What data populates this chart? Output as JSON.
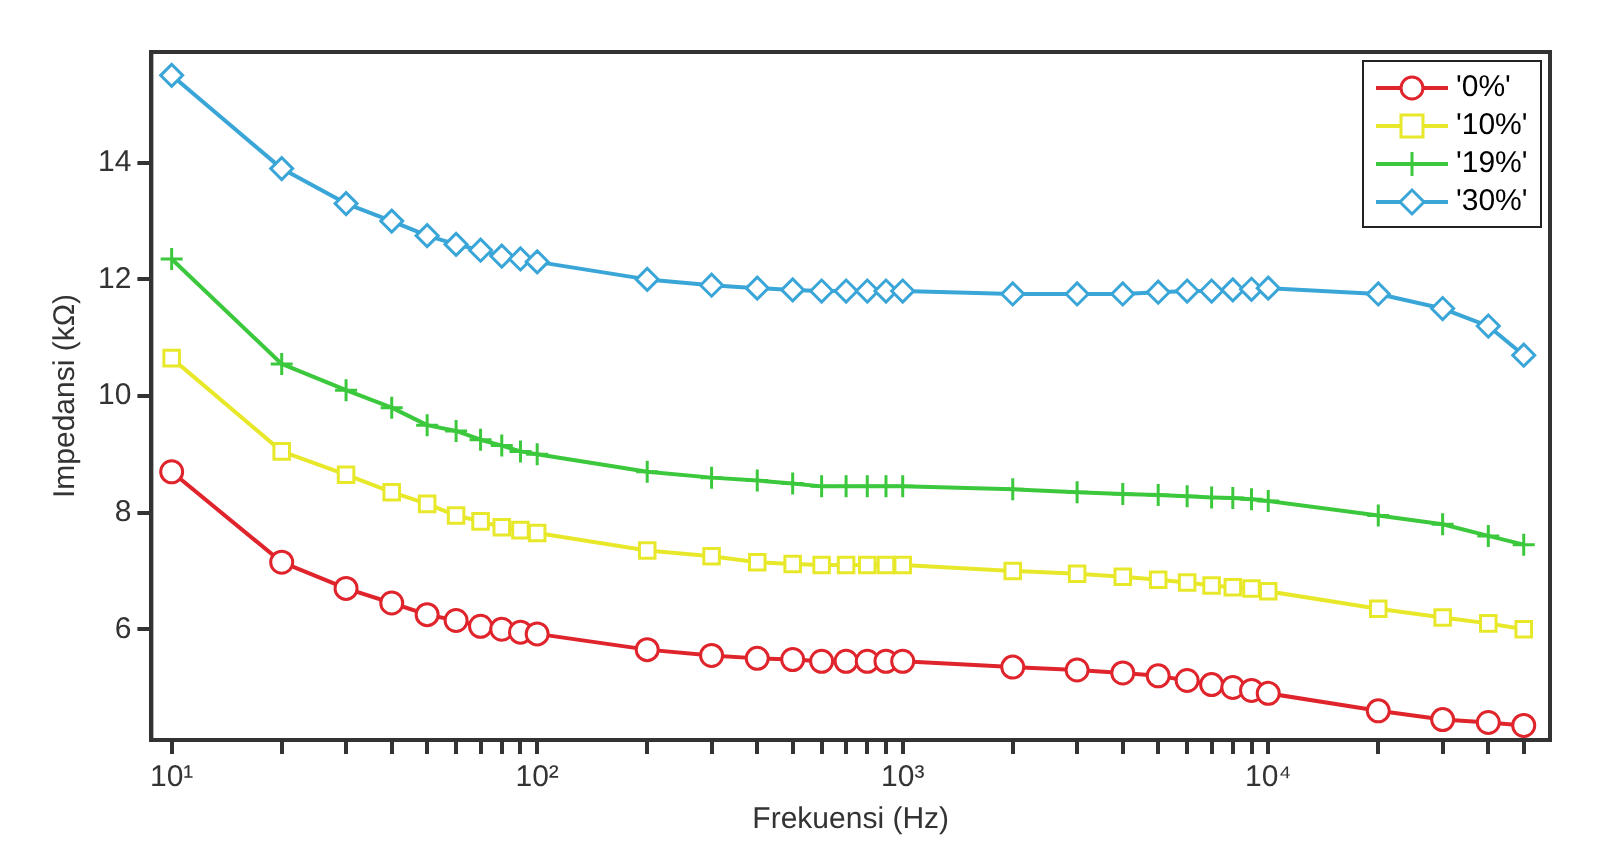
{
  "chart_data": {
    "type": "line",
    "xlabel": "Frekuensi (Hz)",
    "ylabel": "Impedansi (kΩ)",
    "log": "x",
    "grid": false,
    "legend": "top right",
    "x": [
      10,
      20,
      30,
      40,
      50,
      60,
      70,
      80,
      90,
      100,
      200,
      300,
      400,
      500,
      600,
      700,
      800,
      900,
      1000,
      2000,
      3000,
      4000,
      5000,
      6000,
      7000,
      8000,
      9000,
      10000,
      20000,
      30000,
      40000,
      50000
    ],
    "xlim": [
      8.8,
      59000
    ],
    "ylim": [
      4.1,
      15.9
    ],
    "xticks": [
      {
        "value": 10,
        "label": "10¹"
      },
      {
        "value": 20,
        "label": null
      },
      {
        "value": 30,
        "label": null
      },
      {
        "value": 40,
        "label": null
      },
      {
        "value": 50,
        "label": null
      },
      {
        "value": 60,
        "label": null
      },
      {
        "value": 70,
        "label": null
      },
      {
        "value": 80,
        "label": null
      },
      {
        "value": 90,
        "label": null
      },
      {
        "value": 100,
        "label": "10²"
      },
      {
        "value": 200,
        "label": null
      },
      {
        "value": 300,
        "label": null
      },
      {
        "value": 400,
        "label": null
      },
      {
        "value": 500,
        "label": null
      },
      {
        "value": 600,
        "label": null
      },
      {
        "value": 700,
        "label": null
      },
      {
        "value": 800,
        "label": null
      },
      {
        "value": 900,
        "label": null
      },
      {
        "value": 1000,
        "label": "10³"
      },
      {
        "value": 2000,
        "label": null
      },
      {
        "value": 3000,
        "label": null
      },
      {
        "value": 4000,
        "label": null
      },
      {
        "value": 5000,
        "label": null
      },
      {
        "value": 6000,
        "label": null
      },
      {
        "value": 7000,
        "label": null
      },
      {
        "value": 8000,
        "label": null
      },
      {
        "value": 9000,
        "label": null
      },
      {
        "value": 10000,
        "label": "10⁴"
      },
      {
        "value": 20000,
        "label": null
      },
      {
        "value": 30000,
        "label": null
      },
      {
        "value": 40000,
        "label": null
      },
      {
        "value": 50000,
        "label": null
      }
    ],
    "yticks": [
      6,
      8,
      10,
      12,
      14
    ],
    "series": [
      {
        "name": "'0%'",
        "color": "#e0242c",
        "marker": "circle",
        "values": [
          8.7,
          7.15,
          6.7,
          6.45,
          6.25,
          6.15,
          6.05,
          6.0,
          5.95,
          5.92,
          5.65,
          5.55,
          5.5,
          5.48,
          5.45,
          5.45,
          5.45,
          5.45,
          5.45,
          5.35,
          5.3,
          5.25,
          5.2,
          5.12,
          5.05,
          5.0,
          4.95,
          4.9,
          4.6,
          4.45,
          4.4,
          4.35
        ]
      },
      {
        "name": "'10%'",
        "color": "#e8e82a",
        "marker": "square",
        "values": [
          10.65,
          9.05,
          8.65,
          8.35,
          8.15,
          7.95,
          7.85,
          7.75,
          7.7,
          7.65,
          7.35,
          7.25,
          7.15,
          7.12,
          7.1,
          7.1,
          7.1,
          7.1,
          7.1,
          7.0,
          6.95,
          6.9,
          6.85,
          6.8,
          6.75,
          6.72,
          6.7,
          6.65,
          6.35,
          6.2,
          6.1,
          6.0
        ]
      },
      {
        "name": "'19%'",
        "color": "#3cc83c",
        "marker": "cross",
        "values": [
          12.35,
          10.55,
          10.1,
          9.8,
          9.5,
          9.4,
          9.25,
          9.15,
          9.05,
          9.0,
          8.7,
          8.6,
          8.55,
          8.5,
          8.45,
          8.45,
          8.45,
          8.45,
          8.45,
          8.4,
          8.35,
          8.32,
          8.3,
          8.28,
          8.26,
          8.25,
          8.23,
          8.2,
          7.95,
          7.8,
          7.6,
          7.45
        ]
      },
      {
        "name": "'30%'",
        "color": "#3aa6d8",
        "marker": "diamond",
        "values": [
          15.5,
          13.9,
          13.3,
          13.0,
          12.75,
          12.6,
          12.5,
          12.4,
          12.35,
          12.3,
          12.0,
          11.9,
          11.85,
          11.82,
          11.8,
          11.8,
          11.8,
          11.8,
          11.8,
          11.75,
          11.75,
          11.75,
          11.78,
          11.8,
          11.8,
          11.82,
          11.83,
          11.85,
          11.75,
          11.5,
          11.2,
          10.7
        ]
      }
    ]
  }
}
